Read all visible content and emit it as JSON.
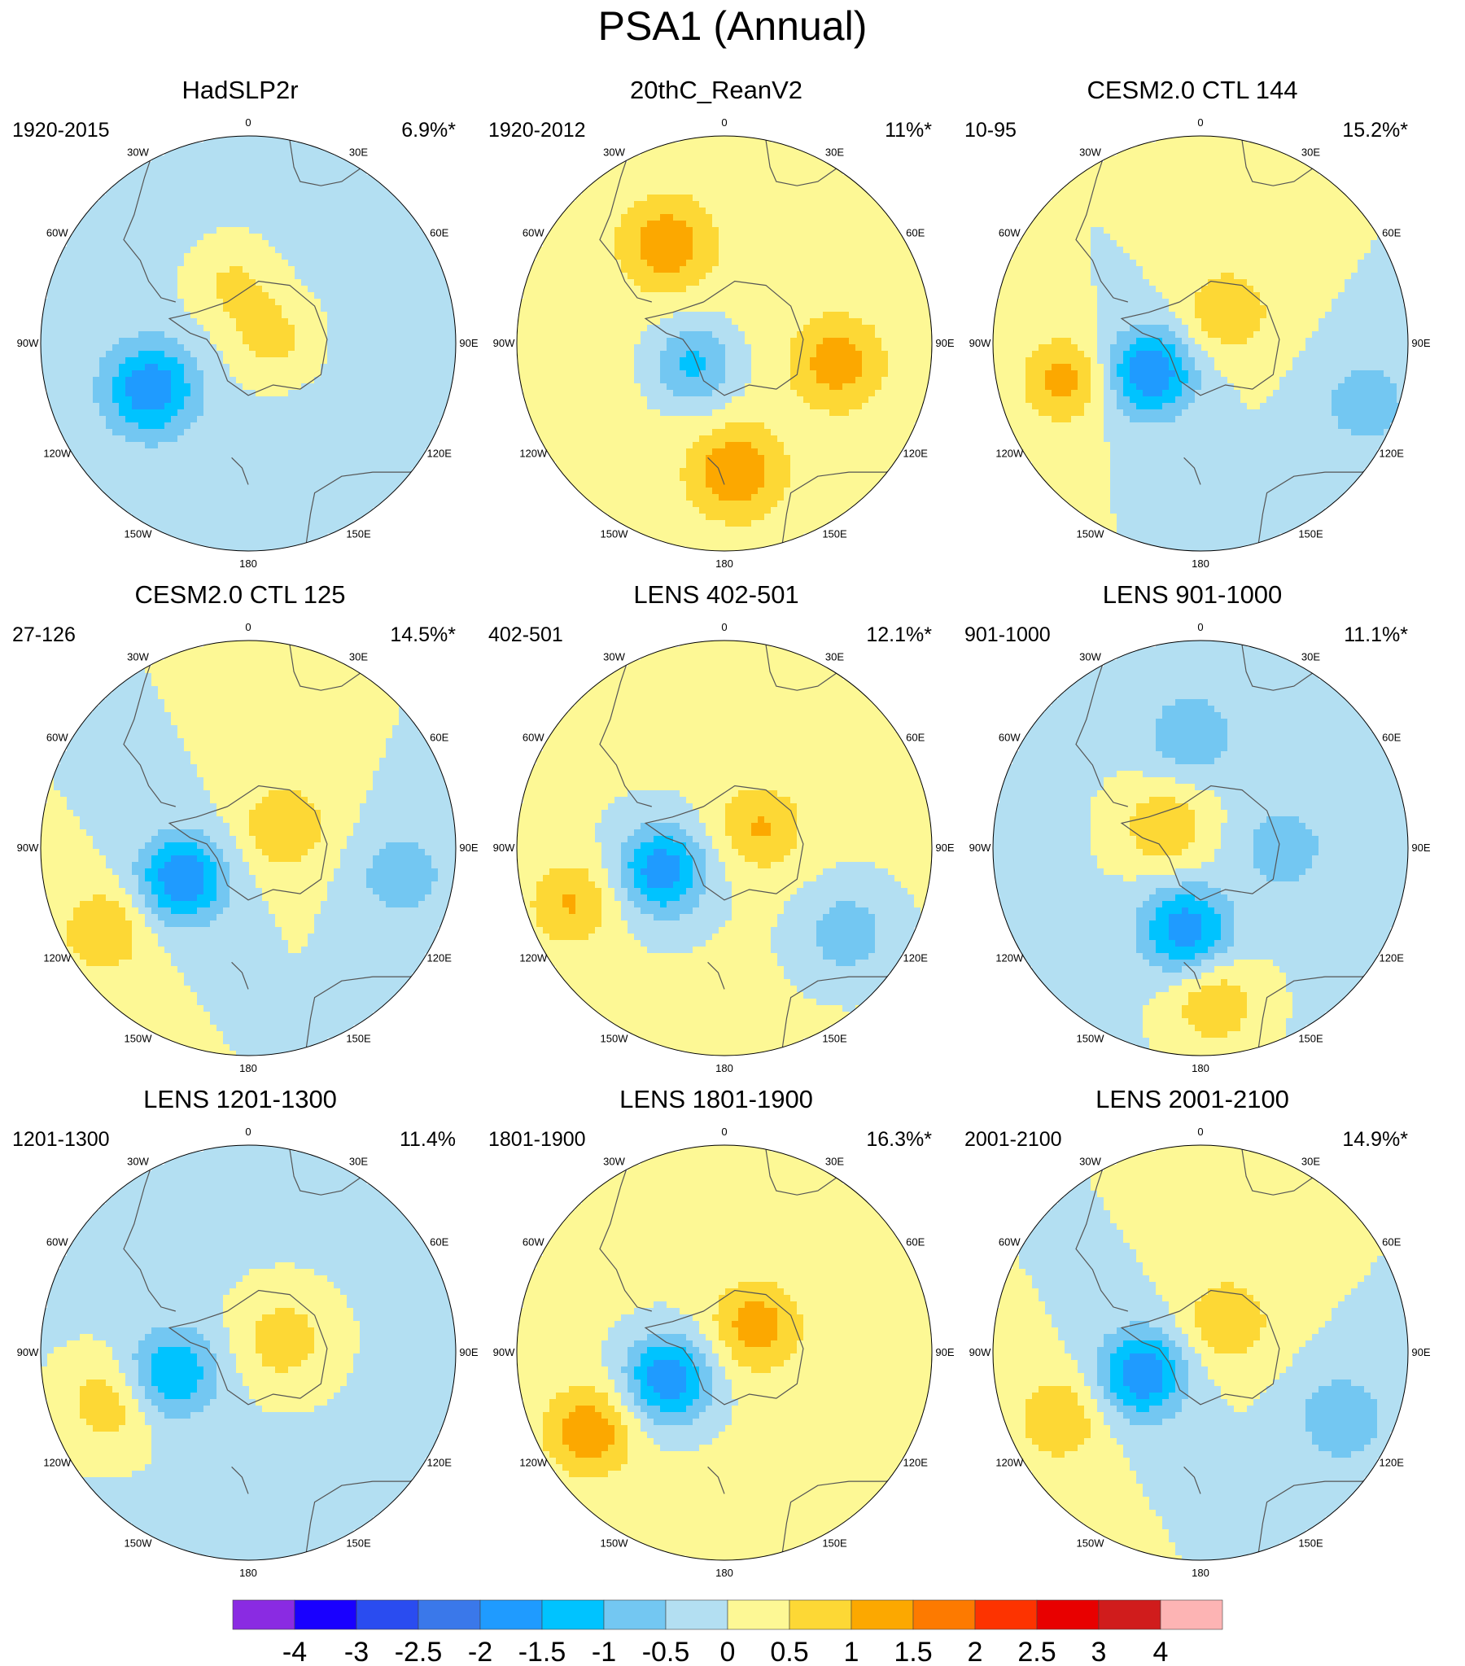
{
  "figure_title": "PSA1 (Annual)",
  "longitude_labels": [
    "0",
    "30E",
    "60E",
    "90E",
    "120E",
    "150E",
    "180",
    "150W",
    "120W",
    "90W",
    "60W",
    "30W"
  ],
  "panels": [
    {
      "title": "HadSLP2r",
      "years": "1920-2015",
      "variance": "6.9%*",
      "lows": [
        {
          "r": 0.52,
          "ang": 245,
          "strength": 1.8
        }
      ],
      "highs": [
        {
          "r": 0.12,
          "ang": 80,
          "strength": 0.8
        },
        {
          "r": 0.3,
          "ang": 345,
          "strength": 0.7
        }
      ],
      "bias": -0.15
    },
    {
      "title": "20thC_ReanV2",
      "years": "1920-2012",
      "variance": "11%*",
      "lows": [
        {
          "r": 0.18,
          "ang": 235,
          "strength": 1.3
        }
      ],
      "highs": [
        {
          "r": 0.62,
          "ang": 175,
          "strength": 1.3
        },
        {
          "r": 0.55,
          "ang": 330,
          "strength": 1.2
        },
        {
          "r": 0.55,
          "ang": 100,
          "strength": 1.1
        }
      ],
      "bias": 0.2
    },
    {
      "title": "CESM2.0 CTL 144",
      "years": "10-95",
      "variance": "15.2%*",
      "lows": [
        {
          "r": 0.28,
          "ang": 240,
          "strength": 2.0
        },
        {
          "r": 0.85,
          "ang": 110,
          "strength": 0.9
        }
      ],
      "highs": [
        {
          "r": 0.68,
          "ang": 255,
          "strength": 1.2
        },
        {
          "r": 0.2,
          "ang": 40,
          "strength": 1.0
        }
      ],
      "bias": 0.0
    },
    {
      "title": "CESM2.0 CTL 125",
      "years": "27-126",
      "variance": "14.5%*",
      "lows": [
        {
          "r": 0.35,
          "ang": 245,
          "strength": 2.0
        },
        {
          "r": 0.75,
          "ang": 100,
          "strength": 0.9
        }
      ],
      "highs": [
        {
          "r": 0.8,
          "ang": 240,
          "strength": 1.0
        },
        {
          "r": 0.2,
          "ang": 60,
          "strength": 1.0
        }
      ],
      "bias": 0.0
    },
    {
      "title": "LENS 402-501",
      "years": "402-501",
      "variance": "12.1%*",
      "lows": [
        {
          "r": 0.32,
          "ang": 250,
          "strength": 1.9
        },
        {
          "r": 0.72,
          "ang": 125,
          "strength": 0.9
        }
      ],
      "highs": [
        {
          "r": 0.78,
          "ang": 250,
          "strength": 1.0
        },
        {
          "r": 0.2,
          "ang": 60,
          "strength": 1.0
        }
      ],
      "bias": 0.05
    },
    {
      "title": "LENS 901-1000",
      "years": "901-1000",
      "variance": "11.1%*",
      "lows": [
        {
          "r": 0.4,
          "ang": 190,
          "strength": 1.8
        },
        {
          "r": 0.55,
          "ang": 355,
          "strength": 0.9
        },
        {
          "r": 0.4,
          "ang": 90,
          "strength": 0.8
        }
      ],
      "highs": [
        {
          "r": 0.2,
          "ang": 300,
          "strength": 1.0
        },
        {
          "r": 0.75,
          "ang": 175,
          "strength": 1.0
        }
      ],
      "bias": -0.05
    },
    {
      "title": "LENS 1201-1300",
      "years": "1201-1300",
      "variance": "11.4%",
      "lows": [
        {
          "r": 0.38,
          "ang": 255,
          "strength": 1.5
        }
      ],
      "highs": [
        {
          "r": 0.72,
          "ang": 250,
          "strength": 0.9
        },
        {
          "r": 0.18,
          "ang": 70,
          "strength": 0.9
        }
      ],
      "bias": -0.05
    },
    {
      "title": "LENS 1801-1900",
      "years": "1801-1900",
      "variance": "16.3%*",
      "lows": [
        {
          "r": 0.3,
          "ang": 245,
          "strength": 2.0
        }
      ],
      "highs": [
        {
          "r": 0.75,
          "ang": 240,
          "strength": 1.3
        },
        {
          "r": 0.2,
          "ang": 50,
          "strength": 1.2
        }
      ],
      "bias": 0.1
    },
    {
      "title": "LENS 2001-2100",
      "years": "2001-2100",
      "variance": "14.9%*",
      "lows": [
        {
          "r": 0.3,
          "ang": 250,
          "strength": 2.0
        },
        {
          "r": 0.75,
          "ang": 115,
          "strength": 1.0
        }
      ],
      "highs": [
        {
          "r": 0.75,
          "ang": 245,
          "strength": 1.0
        },
        {
          "r": 0.2,
          "ang": 40,
          "strength": 1.0
        }
      ],
      "bias": 0.0
    }
  ],
  "colorbar": {
    "labels": [
      "-4",
      "-3",
      "-2.5",
      "-2",
      "-1.5",
      "-1",
      "-0.5",
      "0",
      "0.5",
      "1",
      "1.5",
      "2",
      "2.5",
      "3",
      "4"
    ],
    "levels": [
      -4,
      -3,
      -2.5,
      -2,
      -1.5,
      -1,
      -0.5,
      0,
      0.5,
      1,
      1.5,
      2,
      2.5,
      3,
      4
    ],
    "colors": [
      "#8a2be2",
      "#1900ff",
      "#2a4cf0",
      "#3a78ea",
      "#1f9bff",
      "#00c3ff",
      "#73c7f2",
      "#b3dff2",
      "#fdf895",
      "#fdd835",
      "#fca800",
      "#fd7a00",
      "#fd3300",
      "#e80000",
      "#d01c1c",
      "#fdb4b4"
    ]
  }
}
